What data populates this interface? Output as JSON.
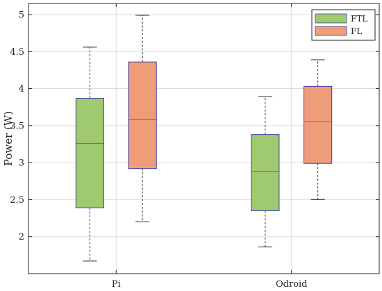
{
  "chart_data": {
    "type": "boxplot",
    "ylabel": "Power (W)",
    "xlabel": "",
    "title": "",
    "categories": [
      "Pi",
      "Odroid"
    ],
    "ylim": [
      1.5,
      5.15
    ],
    "yticks": [
      2,
      2.5,
      3,
      3.5,
      4,
      4.5,
      5
    ],
    "ytick_labels": [
      "2",
      "2.5",
      "3",
      "3.5",
      "4",
      "4.5",
      "5"
    ],
    "grid": true,
    "legend_position": "top-right",
    "series": [
      {
        "name": "FTL",
        "color": "#9fca6f",
        "boxes": [
          {
            "category": "Pi",
            "whisker_low": 1.67,
            "q1": 2.39,
            "median": 3.26,
            "q3": 3.87,
            "whisker_high": 4.56
          },
          {
            "category": "Odroid",
            "whisker_low": 1.86,
            "q1": 2.35,
            "median": 2.88,
            "q3": 3.38,
            "whisker_high": 3.89
          }
        ]
      },
      {
        "name": "FL",
        "color": "#ef9d79",
        "boxes": [
          {
            "category": "Pi",
            "whisker_low": 2.2,
            "q1": 2.92,
            "median": 3.58,
            "q3": 4.36,
            "whisker_high": 4.99
          },
          {
            "category": "Odroid",
            "whisker_low": 2.5,
            "q1": 2.99,
            "median": 3.55,
            "q3": 4.03,
            "whisker_high": 4.39
          }
        ]
      }
    ],
    "box_edge_color": "#3b3ba8",
    "median_color": "#d8421a",
    "whisker_color": "#262626"
  }
}
